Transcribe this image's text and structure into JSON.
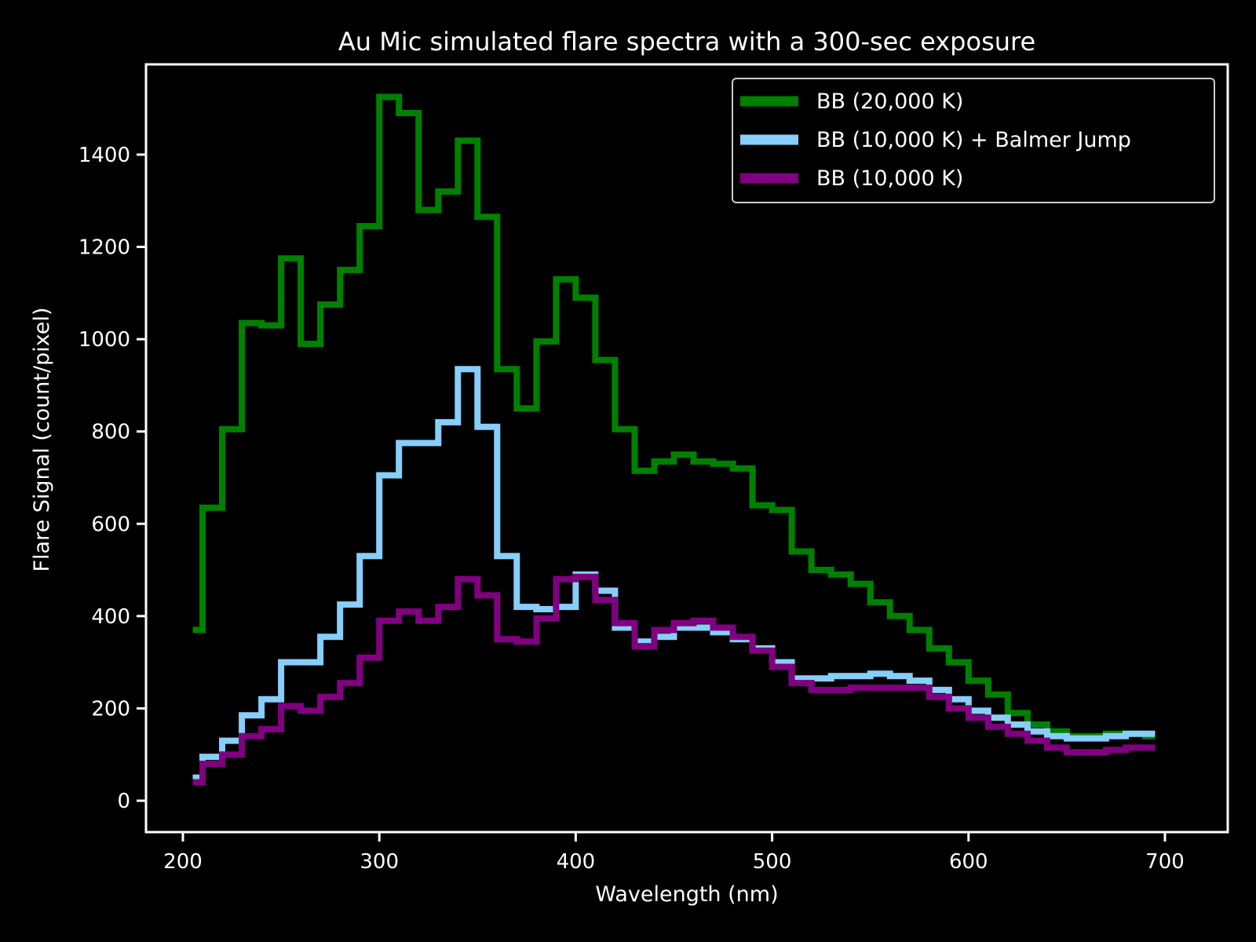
{
  "chart_data": {
    "type": "line",
    "subtype": "step",
    "title": "Au Mic simulated flare spectra with a 300-sec exposure",
    "xlabel": "Wavelength (nm)",
    "ylabel": "Flare Signal (count/pixel)",
    "xlim": [
      180,
      720
    ],
    "ylim": [
      -30,
      1590
    ],
    "xticks": [
      200,
      300,
      400,
      500,
      600,
      700
    ],
    "yticks": [
      0,
      200,
      400,
      600,
      800,
      1000,
      1200,
      1400
    ],
    "grid": false,
    "legend_position": "upper right",
    "bin_edges": [
      205,
      210,
      220,
      230,
      240,
      250,
      260,
      270,
      280,
      290,
      300,
      310,
      320,
      330,
      340,
      350,
      360,
      370,
      380,
      390,
      400,
      410,
      420,
      430,
      440,
      450,
      460,
      470,
      480,
      490,
      500,
      510,
      520,
      530,
      540,
      550,
      560,
      570,
      580,
      590,
      600,
      610,
      620,
      630,
      640,
      650,
      660,
      670,
      680,
      690,
      695
    ],
    "series": [
      {
        "name": "BB (20,000 K)",
        "color": "#008000",
        "values": [
          370,
          635,
          805,
          1035,
          1030,
          1175,
          990,
          1075,
          1150,
          1245,
          1525,
          1490,
          1280,
          1320,
          1430,
          1265,
          935,
          850,
          995,
          1130,
          1090,
          955,
          805,
          715,
          735,
          750,
          735,
          730,
          720,
          640,
          630,
          540,
          500,
          490,
          470,
          430,
          400,
          370,
          330,
          300,
          260,
          230,
          190,
          165,
          150,
          140,
          140,
          145,
          145,
          140
        ]
      },
      {
        "name": "BB (10,000 K) + Balmer Jump",
        "color": "#87cefa",
        "values": [
          50,
          95,
          130,
          185,
          220,
          300,
          300,
          355,
          425,
          530,
          705,
          775,
          775,
          820,
          935,
          810,
          530,
          420,
          415,
          420,
          490,
          455,
          375,
          345,
          355,
          375,
          375,
          365,
          350,
          330,
          300,
          265,
          265,
          270,
          270,
          275,
          270,
          260,
          240,
          220,
          195,
          180,
          165,
          150,
          140,
          135,
          135,
          140,
          145,
          145
        ]
      },
      {
        "name": "BB (10,000 K)",
        "color": "#800080",
        "values": [
          40,
          80,
          100,
          140,
          155,
          205,
          195,
          225,
          255,
          310,
          390,
          410,
          390,
          420,
          480,
          445,
          350,
          345,
          395,
          480,
          485,
          435,
          385,
          335,
          370,
          385,
          390,
          375,
          355,
          325,
          290,
          255,
          240,
          240,
          245,
          245,
          245,
          245,
          225,
          200,
          180,
          160,
          145,
          130,
          115,
          105,
          105,
          110,
          115,
          115
        ]
      }
    ]
  },
  "legend": {
    "items": [
      {
        "label": "BB (20,000 K)",
        "color": "#008000"
      },
      {
        "label": "BB (10,000 K) + Balmer Jump",
        "color": "#87cefa"
      },
      {
        "label": "BB (10,000 K)",
        "color": "#800080"
      }
    ]
  }
}
